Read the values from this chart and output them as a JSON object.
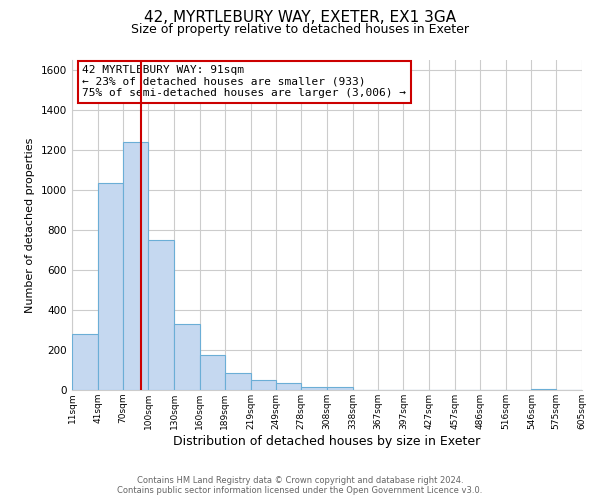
{
  "title": "42, MYRTLEBURY WAY, EXETER, EX1 3GA",
  "subtitle": "Size of property relative to detached houses in Exeter",
  "xlabel": "Distribution of detached houses by size in Exeter",
  "ylabel": "Number of detached properties",
  "bar_color": "#c5d8f0",
  "bar_edge_color": "#6baed6",
  "vline_x": 91,
  "vline_color": "#cc0000",
  "annotation_line1": "42 MYRTLEBURY WAY: 91sqm",
  "annotation_line2": "← 23% of detached houses are smaller (933)",
  "annotation_line3": "75% of semi-detached houses are larger (3,006) →",
  "annotation_box_color": "#ffffff",
  "annotation_box_edge": "#cc0000",
  "footer_line1": "Contains HM Land Registry data © Crown copyright and database right 2024.",
  "footer_line2": "Contains public sector information licensed under the Open Government Licence v3.0.",
  "bins_left_edges": [
    11,
    41,
    70,
    100,
    130,
    160,
    189,
    219,
    249,
    278,
    308,
    338,
    367,
    397,
    427,
    457,
    486,
    516,
    546,
    575
  ],
  "bin_heights": [
    280,
    1035,
    1240,
    750,
    330,
    175,
    85,
    50,
    35,
    15,
    15,
    0,
    0,
    0,
    0,
    0,
    0,
    0,
    5,
    0
  ],
  "xlim": [
    11,
    605
  ],
  "ylim": [
    0,
    1650
  ],
  "yticks": [
    0,
    200,
    400,
    600,
    800,
    1000,
    1200,
    1400,
    1600
  ],
  "xtick_labels": [
    "11sqm",
    "41sqm",
    "70sqm",
    "100sqm",
    "130sqm",
    "160sqm",
    "189sqm",
    "219sqm",
    "249sqm",
    "278sqm",
    "308sqm",
    "338sqm",
    "367sqm",
    "397sqm",
    "427sqm",
    "457sqm",
    "486sqm",
    "516sqm",
    "546sqm",
    "575sqm",
    "605sqm"
  ],
  "xtick_positions": [
    11,
    41,
    70,
    100,
    130,
    160,
    189,
    219,
    249,
    278,
    308,
    338,
    367,
    397,
    427,
    457,
    486,
    516,
    546,
    575,
    605
  ],
  "background_color": "#ffffff",
  "grid_color": "#cccccc",
  "title_fontsize": 11,
  "subtitle_fontsize": 9,
  "ylabel_fontsize": 8,
  "xlabel_fontsize": 9
}
